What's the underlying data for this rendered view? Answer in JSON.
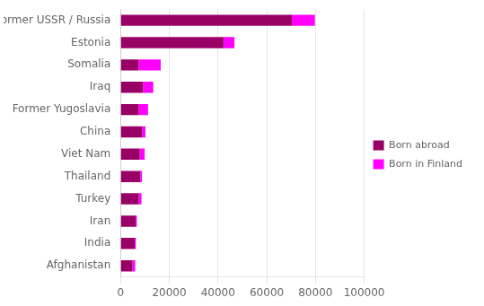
{
  "chart_data": {
    "type": "bar",
    "orientation": "horizontal",
    "stacked": true,
    "categories": [
      "Former USSR / Russia",
      "Estonia",
      "Somalia",
      "Iraq",
      "Former Yugoslavia",
      "China",
      "Viet Nam",
      "Thailand",
      "Turkey",
      "Iran",
      "India",
      "Afghanistan"
    ],
    "series": [
      {
        "name": "Born abroad",
        "color": "#990066",
        "values": [
          70273,
          42234,
          7480,
          9215,
          7490,
          8800,
          7900,
          8100,
          7500,
          6200,
          5800,
          4800
        ]
      },
      {
        "name": "Born in Finland",
        "color": "#ff00ff",
        "values": [
          9500,
          4500,
          9000,
          4200,
          3800,
          1400,
          2000,
          700,
          1100,
          500,
          500,
          1200
        ]
      }
    ],
    "xlim": [
      0,
      100000
    ],
    "xticks": [
      0,
      20000,
      40000,
      60000,
      80000,
      100000
    ],
    "grid": true,
    "legend": "right"
  }
}
